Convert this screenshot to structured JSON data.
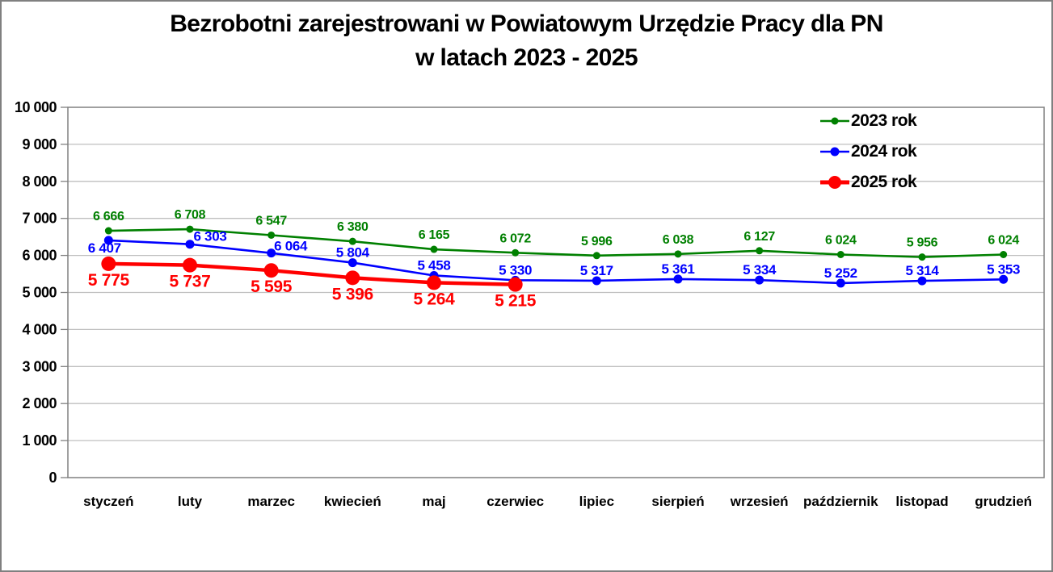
{
  "title": {
    "line1": "Bezrobotni zarejestrowani w Powiatowym Urzędzie Pracy dla PN",
    "line2": "w latach 2023 - 2025"
  },
  "colors": {
    "series_2023": "#008000",
    "series_2024": "#0000FF",
    "series_2025": "#FF0000",
    "gridline": "#BFBFBF",
    "axis": "#808080",
    "text": "#000000",
    "background": "#FFFFFF"
  },
  "legend": {
    "position": "top-right",
    "items": [
      {
        "label": "2023 rok",
        "color": "#008000",
        "line_width": 2.6,
        "marker_radius": 4.5
      },
      {
        "label": "2024 rok",
        "color": "#0000FF",
        "line_width": 2.6,
        "marker_radius": 5.5
      },
      {
        "label": "2025 rok",
        "color": "#FF0000",
        "line_width": 5,
        "marker_radius": 8
      }
    ]
  },
  "chart_data": {
    "type": "line",
    "title": "Bezrobotni zarejestrowani w Powiatowym Urzędzie Pracy dla PN w latach 2023 - 2025",
    "categories": [
      "styczeń",
      "luty",
      "marzec",
      "kwiecień",
      "maj",
      "czerwiec",
      "lipiec",
      "sierpień",
      "wrzesień",
      "październik",
      "listopad",
      "grudzień"
    ],
    "series": [
      {
        "name": "2023 rok",
        "color": "#008000",
        "values": [
          6666,
          6708,
          6547,
          6380,
          6165,
          6072,
          5996,
          6038,
          6127,
          6024,
          5956,
          6024
        ],
        "line_width": 2.6,
        "marker_radius": 4.5,
        "label_size": 16,
        "label_dy": -13,
        "label_offsets": {}
      },
      {
        "name": "2024 rok",
        "color": "#0000FF",
        "values": [
          6407,
          6303,
          6064,
          5804,
          5458,
          5330,
          5317,
          5361,
          5334,
          5252,
          5314,
          5353
        ],
        "line_width": 2.6,
        "marker_radius": 5.5,
        "label_size": 17,
        "label_dy": -7,
        "label_offsets": {
          "0": {
            "dx": -5,
            "dy": 15
          },
          "1": {
            "dx": 25,
            "dy": -4
          },
          "2": {
            "dx": 24,
            "dy": -3
          }
        }
      },
      {
        "name": "2025 rok",
        "color": "#FF0000",
        "values": [
          5775,
          5737,
          5595,
          5396,
          5264,
          5215,
          null,
          null,
          null,
          null,
          null,
          null
        ],
        "line_width": 4.5,
        "marker_radius": 9,
        "label_size": 21,
        "label_dy": 27,
        "label_offsets": {}
      }
    ],
    "ylim": [
      0,
      10000
    ],
    "ytick_step": 1000,
    "ytick_labels": [
      "0",
      "1 000",
      "2 000",
      "3 000",
      "4 000",
      "5 000",
      "6 000",
      "7 000",
      "8 000",
      "9 000",
      "10 000"
    ],
    "xlabel": "",
    "ylabel": "",
    "grid": "horizontal-only",
    "legend_position": "top-right",
    "data_labels": true,
    "number_format": "space-thousands"
  }
}
